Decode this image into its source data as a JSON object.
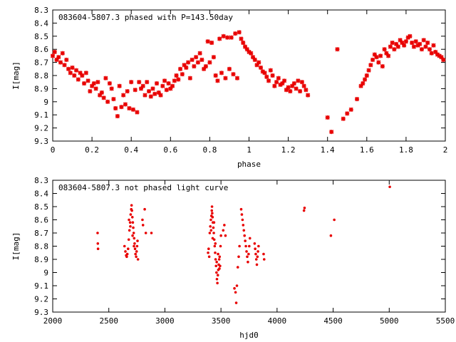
{
  "colors": {
    "points": "#e80000",
    "axis": "#000000",
    "background": "#ffffff"
  },
  "chart_data": [
    {
      "type": "scatter",
      "title": "083604-5807.3 phased with P=143.50day",
      "xlabel": "phase",
      "ylabel": "I[mag]",
      "xlim": [
        0,
        2
      ],
      "ylim": [
        8.3,
        9.3
      ],
      "y_inverted": true,
      "grid": false,
      "marker": "plus-cross",
      "xticks": [
        "0",
        "0.2",
        "0.4",
        "0.6",
        "0.8",
        "1",
        "1.2",
        "1.4",
        "1.6",
        "1.8",
        "2"
      ],
      "yticks": [
        "8.3",
        "8.4",
        "8.5",
        "8.6",
        "8.7",
        "8.8",
        "8.9",
        "9",
        "9.1",
        "9.2",
        "9.3"
      ],
      "points": [
        [
          0.0,
          8.65
        ],
        [
          0.01,
          8.62
        ],
        [
          0.02,
          8.68
        ],
        [
          0.03,
          8.66
        ],
        [
          0.04,
          8.7
        ],
        [
          0.05,
          8.63
        ],
        [
          0.06,
          8.72
        ],
        [
          0.07,
          8.68
        ],
        [
          0.08,
          8.75
        ],
        [
          0.09,
          8.78
        ],
        [
          0.1,
          8.74
        ],
        [
          0.11,
          8.8
        ],
        [
          0.12,
          8.76
        ],
        [
          0.13,
          8.83
        ],
        [
          0.14,
          8.78
        ],
        [
          0.15,
          8.8
        ],
        [
          0.16,
          8.86
        ],
        [
          0.17,
          8.78
        ],
        [
          0.18,
          8.84
        ],
        [
          0.19,
          8.92
        ],
        [
          0.2,
          8.88
        ],
        [
          0.21,
          8.86
        ],
        [
          0.22,
          8.9
        ],
        [
          0.23,
          8.85
        ],
        [
          0.24,
          8.95
        ],
        [
          0.25,
          8.93
        ],
        [
          0.26,
          8.97
        ],
        [
          0.27,
          8.82
        ],
        [
          0.28,
          9.0
        ],
        [
          0.29,
          8.86
        ],
        [
          0.3,
          8.9
        ],
        [
          0.31,
          8.98
        ],
        [
          0.32,
          9.05
        ],
        [
          0.33,
          9.11
        ],
        [
          0.34,
          8.88
        ],
        [
          0.35,
          9.04
        ],
        [
          0.36,
          8.95
        ],
        [
          0.37,
          9.02
        ],
        [
          0.38,
          8.92
        ],
        [
          0.39,
          9.05
        ],
        [
          0.4,
          8.85
        ],
        [
          0.41,
          9.06
        ],
        [
          0.42,
          8.91
        ],
        [
          0.43,
          9.08
        ],
        [
          0.44,
          8.85
        ],
        [
          0.45,
          8.9
        ],
        [
          0.46,
          8.88
        ],
        [
          0.47,
          8.95
        ],
        [
          0.48,
          8.85
        ],
        [
          0.49,
          8.92
        ],
        [
          0.5,
          8.96
        ],
        [
          0.51,
          8.9
        ],
        [
          0.52,
          8.94
        ],
        [
          0.53,
          8.86
        ],
        [
          0.54,
          8.93
        ],
        [
          0.55,
          8.95
        ],
        [
          0.56,
          8.88
        ],
        [
          0.57,
          8.84
        ],
        [
          0.58,
          8.91
        ],
        [
          0.59,
          8.86
        ],
        [
          0.6,
          8.9
        ],
        [
          0.61,
          8.88
        ],
        [
          0.62,
          8.84
        ],
        [
          0.63,
          8.8
        ],
        [
          0.64,
          8.83
        ],
        [
          0.65,
          8.75
        ],
        [
          0.66,
          8.79
        ],
        [
          0.67,
          8.72
        ],
        [
          0.68,
          8.74
        ],
        [
          0.69,
          8.7
        ],
        [
          0.7,
          8.82
        ],
        [
          0.71,
          8.68
        ],
        [
          0.72,
          8.73
        ],
        [
          0.73,
          8.66
        ],
        [
          0.74,
          8.7
        ],
        [
          0.75,
          8.63
        ],
        [
          0.76,
          8.68
        ],
        [
          0.77,
          8.75
        ],
        [
          0.78,
          8.73
        ],
        [
          0.79,
          8.54
        ],
        [
          0.8,
          8.7
        ],
        [
          0.81,
          8.55
        ],
        [
          0.82,
          8.66
        ],
        [
          0.83,
          8.8
        ],
        [
          0.84,
          8.84
        ],
        [
          0.85,
          8.52
        ],
        [
          0.86,
          8.78
        ],
        [
          0.87,
          8.5
        ],
        [
          0.88,
          8.82
        ],
        [
          0.89,
          8.51
        ],
        [
          0.9,
          8.75
        ],
        [
          0.91,
          8.51
        ],
        [
          0.92,
          8.79
        ],
        [
          0.93,
          8.48
        ],
        [
          0.94,
          8.82
        ],
        [
          0.95,
          8.47
        ],
        [
          0.96,
          8.52
        ],
        [
          0.97,
          8.55
        ],
        [
          0.98,
          8.58
        ],
        [
          0.99,
          8.6
        ],
        [
          1.0,
          8.62
        ],
        [
          1.01,
          8.63
        ],
        [
          1.02,
          8.66
        ],
        [
          1.03,
          8.68
        ],
        [
          1.04,
          8.72
        ],
        [
          1.05,
          8.7
        ],
        [
          1.06,
          8.74
        ],
        [
          1.07,
          8.77
        ],
        [
          1.08,
          8.78
        ],
        [
          1.09,
          8.81
        ],
        [
          1.1,
          8.84
        ],
        [
          1.11,
          8.76
        ],
        [
          1.12,
          8.8
        ],
        [
          1.13,
          8.88
        ],
        [
          1.14,
          8.85
        ],
        [
          1.15,
          8.82
        ],
        [
          1.16,
          8.87
        ],
        [
          1.17,
          8.86
        ],
        [
          1.18,
          8.84
        ],
        [
          1.19,
          8.91
        ],
        [
          1.2,
          8.89
        ],
        [
          1.21,
          8.92
        ],
        [
          1.22,
          8.88
        ],
        [
          1.23,
          8.86
        ],
        [
          1.24,
          8.9
        ],
        [
          1.25,
          8.84
        ],
        [
          1.26,
          8.92
        ],
        [
          1.27,
          8.85
        ],
        [
          1.28,
          8.88
        ],
        [
          1.29,
          8.91
        ],
        [
          1.3,
          8.95
        ],
        [
          1.4,
          9.12
        ],
        [
          1.42,
          9.23
        ],
        [
          1.45,
          8.6
        ],
        [
          1.48,
          9.13
        ],
        [
          1.5,
          9.09
        ],
        [
          1.52,
          9.06
        ],
        [
          1.55,
          8.98
        ],
        [
          1.57,
          8.88
        ],
        [
          1.58,
          8.86
        ],
        [
          1.59,
          8.83
        ],
        [
          1.6,
          8.8
        ],
        [
          1.61,
          8.76
        ],
        [
          1.62,
          8.72
        ],
        [
          1.63,
          8.68
        ],
        [
          1.64,
          8.64
        ],
        [
          1.65,
          8.66
        ],
        [
          1.66,
          8.7
        ],
        [
          1.67,
          8.65
        ],
        [
          1.68,
          8.73
        ],
        [
          1.69,
          8.6
        ],
        [
          1.7,
          8.63
        ],
        [
          1.71,
          8.65
        ],
        [
          1.72,
          8.58
        ],
        [
          1.73,
          8.55
        ],
        [
          1.74,
          8.6
        ],
        [
          1.75,
          8.56
        ],
        [
          1.76,
          8.58
        ],
        [
          1.77,
          8.53
        ],
        [
          1.78,
          8.55
        ],
        [
          1.79,
          8.57
        ],
        [
          1.8,
          8.54
        ],
        [
          1.81,
          8.51
        ],
        [
          1.82,
          8.5
        ],
        [
          1.83,
          8.55
        ],
        [
          1.84,
          8.58
        ],
        [
          1.85,
          8.54
        ],
        [
          1.86,
          8.57
        ],
        [
          1.87,
          8.56
        ],
        [
          1.88,
          8.6
        ],
        [
          1.89,
          8.53
        ],
        [
          1.9,
          8.58
        ],
        [
          1.91,
          8.55
        ],
        [
          1.92,
          8.6
        ],
        [
          1.93,
          8.63
        ],
        [
          1.94,
          8.57
        ],
        [
          1.95,
          8.62
        ],
        [
          1.96,
          8.64
        ],
        [
          1.97,
          8.65
        ],
        [
          1.98,
          8.66
        ],
        [
          1.99,
          8.68
        ]
      ]
    },
    {
      "type": "scatter",
      "title": "083604-5807.3 not phased light curve",
      "xlabel": "hjd0",
      "ylabel": "I[mag]",
      "xlim": [
        2000,
        5500
      ],
      "ylim": [
        8.3,
        9.3
      ],
      "y_inverted": true,
      "grid": false,
      "marker": "dot",
      "xticks": [
        "2000",
        "2500",
        "3000",
        "3500",
        "4000",
        "4500",
        "5000",
        "5500"
      ],
      "yticks": [
        "8.3",
        "8.4",
        "8.5",
        "8.6",
        "8.7",
        "8.8",
        "8.9",
        "9",
        "9.1",
        "9.2",
        "9.3"
      ],
      "points": [
        [
          2400,
          8.7
        ],
        [
          2402,
          8.78
        ],
        [
          2404,
          8.82
        ],
        [
          2640,
          8.8
        ],
        [
          2648,
          8.84
        ],
        [
          2655,
          8.87
        ],
        [
          2660,
          8.88
        ],
        [
          2665,
          8.86
        ],
        [
          2672,
          8.82
        ],
        [
          2678,
          8.75
        ],
        [
          2684,
          8.68
        ],
        [
          2690,
          8.62
        ],
        [
          2695,
          8.56
        ],
        [
          2700,
          8.52
        ],
        [
          2703,
          8.49
        ],
        [
          2706,
          8.53
        ],
        [
          2710,
          8.58
        ],
        [
          2714,
          8.62
        ],
        [
          2718,
          8.66
        ],
        [
          2722,
          8.7
        ],
        [
          2726,
          8.74
        ],
        [
          2730,
          8.78
        ],
        [
          2734,
          8.82
        ],
        [
          2738,
          8.86
        ],
        [
          2744,
          8.88
        ],
        [
          2748,
          8.84
        ],
        [
          2752,
          8.8
        ],
        [
          2756,
          8.76
        ],
        [
          2760,
          8.9
        ],
        [
          2680,
          8.6
        ],
        [
          2692,
          8.65
        ],
        [
          2712,
          8.72
        ],
        [
          2724,
          8.8
        ],
        [
          2800,
          8.6
        ],
        [
          2805,
          8.64
        ],
        [
          2820,
          8.52
        ],
        [
          2830,
          8.7
        ],
        [
          2880,
          8.7
        ],
        [
          3385,
          8.85
        ],
        [
          3390,
          8.82
        ],
        [
          3395,
          8.88
        ],
        [
          3400,
          8.7
        ],
        [
          3405,
          8.65
        ],
        [
          3410,
          8.6
        ],
        [
          3415,
          8.57
        ],
        [
          3418,
          8.53
        ],
        [
          3420,
          8.5
        ],
        [
          3422,
          8.55
        ],
        [
          3425,
          8.58
        ],
        [
          3428,
          8.62
        ],
        [
          3432,
          8.66
        ],
        [
          3436,
          8.7
        ],
        [
          3440,
          8.75
        ],
        [
          3444,
          8.8
        ],
        [
          3448,
          8.85
        ],
        [
          3452,
          8.9
        ],
        [
          3456,
          8.95
        ],
        [
          3460,
          9.0
        ],
        [
          3464,
          9.05
        ],
        [
          3468,
          9.08
        ],
        [
          3472,
          9.02
        ],
        [
          3476,
          8.98
        ],
        [
          3480,
          8.94
        ],
        [
          3484,
          8.9
        ],
        [
          3488,
          8.88
        ],
        [
          3492,
          8.95
        ],
        [
          3496,
          8.8
        ],
        [
          3500,
          8.72
        ],
        [
          3412,
          8.68
        ],
        [
          3426,
          8.74
        ],
        [
          3438,
          8.62
        ],
        [
          3450,
          8.78
        ],
        [
          3462,
          8.92
        ],
        [
          3474,
          8.86
        ],
        [
          3486,
          8.97
        ],
        [
          3520,
          8.68
        ],
        [
          3530,
          8.64
        ],
        [
          3540,
          8.72
        ],
        [
          3620,
          9.12
        ],
        [
          3630,
          9.15
        ],
        [
          3636,
          9.23
        ],
        [
          3642,
          9.1
        ],
        [
          3650,
          8.96
        ],
        [
          3658,
          8.88
        ],
        [
          3665,
          8.8
        ],
        [
          3680,
          8.52
        ],
        [
          3686,
          8.56
        ],
        [
          3692,
          8.6
        ],
        [
          3698,
          8.64
        ],
        [
          3704,
          8.68
        ],
        [
          3710,
          8.72
        ],
        [
          3716,
          8.76
        ],
        [
          3722,
          8.8
        ],
        [
          3728,
          8.84
        ],
        [
          3734,
          8.88
        ],
        [
          3740,
          8.92
        ],
        [
          3746,
          8.86
        ],
        [
          3752,
          8.8
        ],
        [
          3758,
          8.74
        ],
        [
          3800,
          8.78
        ],
        [
          3805,
          8.82
        ],
        [
          3810,
          8.86
        ],
        [
          3815,
          8.9
        ],
        [
          3820,
          8.94
        ],
        [
          3825,
          8.88
        ],
        [
          3830,
          8.84
        ],
        [
          3835,
          8.8
        ],
        [
          3880,
          8.86
        ],
        [
          3885,
          8.9
        ],
        [
          4240,
          8.53
        ],
        [
          4245,
          8.51
        ],
        [
          4480,
          8.72
        ],
        [
          4510,
          8.6
        ],
        [
          5005,
          8.35
        ]
      ]
    }
  ]
}
